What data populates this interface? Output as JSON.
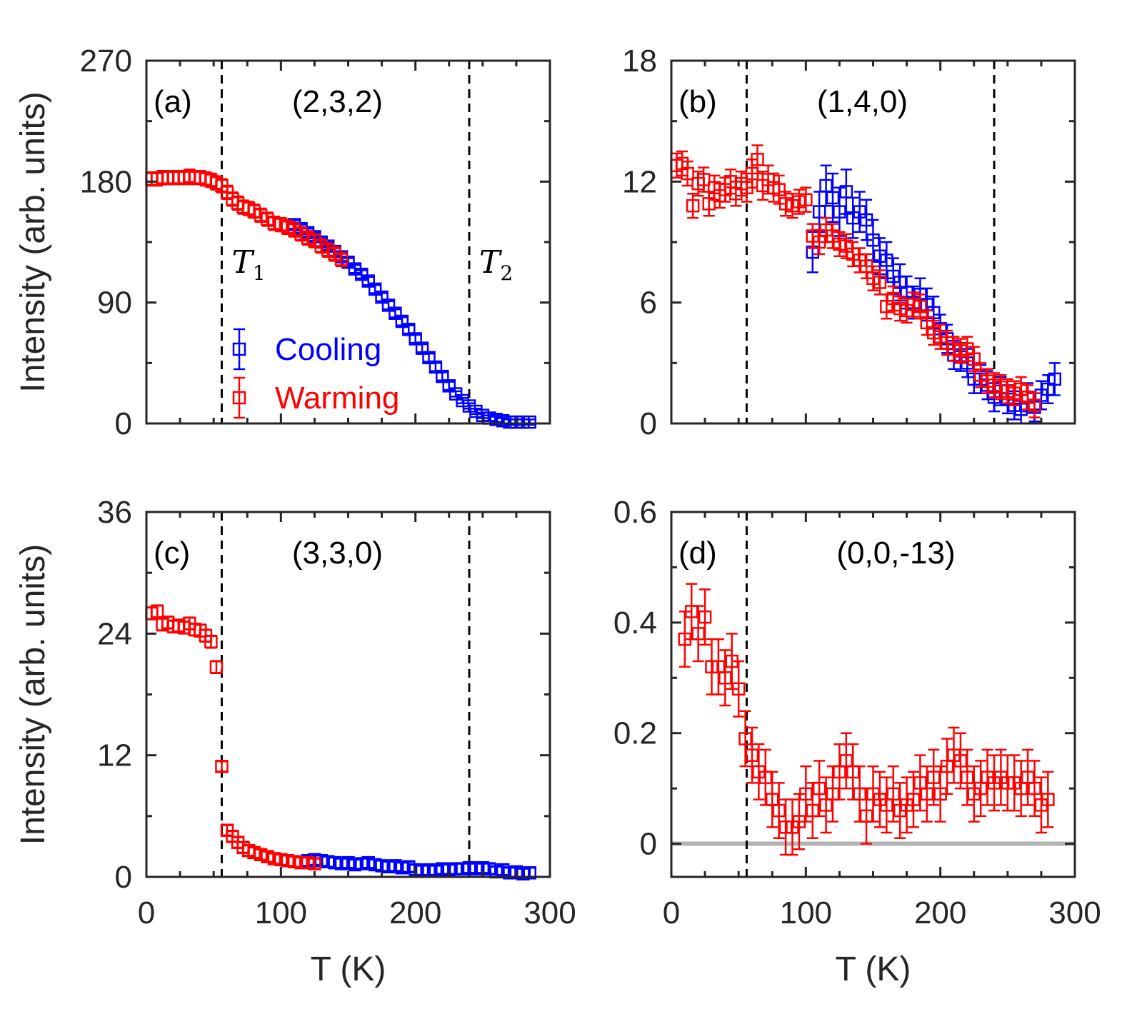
{
  "colors": {
    "cooling": "#0000ff",
    "warming": "#ff0000",
    "axis": "#262626",
    "baseline": "#b3b3b3"
  },
  "chart_data": [
    {
      "id": "a",
      "type": "scatter",
      "panel_label": "(a)",
      "title": "(2,3,2)",
      "xlabel": "",
      "ylabel": "Intensity (arb. units)",
      "xlim": [
        0,
        300
      ],
      "ylim": [
        0,
        270
      ],
      "xticks": [
        0,
        100,
        200,
        300
      ],
      "yticks": [
        0,
        90,
        180,
        270
      ],
      "ytick_labels": [
        "0",
        "90",
        "180",
        "270"
      ],
      "xticks_labeled": false,
      "vlines": [
        {
          "x": 56,
          "label": "T",
          "sub": "1"
        },
        {
          "x": 240,
          "label": "T",
          "sub": "2"
        }
      ],
      "legend": {
        "position": "bottom-center",
        "entries": [
          {
            "name": "Cooling",
            "color_key": "cooling"
          },
          {
            "name": "Warming",
            "color_key": "warming"
          }
        ]
      },
      "series": [
        {
          "name": "Cooling",
          "color_key": "cooling",
          "x": [
            110,
            115,
            120,
            125,
            130,
            135,
            140,
            145,
            150,
            155,
            160,
            165,
            170,
            175,
            180,
            185,
            190,
            195,
            200,
            205,
            210,
            215,
            220,
            225,
            230,
            235,
            240,
            245,
            250,
            255,
            260,
            265,
            270,
            275,
            280,
            285
          ],
          "y": [
            148,
            145,
            142,
            139,
            135,
            132,
            128,
            124,
            120,
            115,
            111,
            106,
            100,
            94,
            88,
            82,
            76,
            70,
            63,
            56,
            49,
            42,
            35,
            28,
            22,
            17,
            13,
            9,
            6,
            4,
            3,
            2,
            1,
            1,
            1,
            1
          ],
          "err": [
            3,
            3,
            3,
            3,
            3,
            3,
            3,
            3,
            3,
            3,
            3,
            3,
            3,
            3,
            3,
            3,
            3,
            3,
            3,
            3,
            3,
            3,
            3,
            3,
            2,
            2,
            2,
            2,
            2,
            2,
            2,
            2,
            2,
            2,
            2,
            2
          ]
        },
        {
          "name": "Warming",
          "color_key": "warming",
          "x": [
            4,
            8,
            12,
            16,
            20,
            24,
            28,
            32,
            36,
            40,
            44,
            48,
            52,
            56,
            60,
            64,
            68,
            72,
            76,
            80,
            85,
            90,
            95,
            100,
            105,
            110,
            115,
            120,
            125,
            130,
            135,
            140,
            145
          ],
          "y": [
            182,
            182,
            183,
            183,
            183,
            183,
            183,
            184,
            183,
            183,
            182,
            181,
            179,
            177,
            172,
            167,
            164,
            161,
            160,
            158,
            155,
            152,
            149,
            148,
            146,
            144,
            141,
            138,
            136,
            132,
            129,
            126,
            122
          ],
          "err": [
            5,
            5,
            5,
            5,
            5,
            5,
            5,
            5,
            5,
            5,
            5,
            5,
            5,
            5,
            5,
            5,
            5,
            5,
            5,
            5,
            5,
            5,
            5,
            5,
            5,
            5,
            5,
            5,
            5,
            5,
            5,
            5,
            5
          ]
        }
      ]
    },
    {
      "id": "b",
      "type": "scatter",
      "panel_label": "(b)",
      "title": "(1,4,0)",
      "xlabel": "",
      "ylabel": "",
      "xlim": [
        0,
        300
      ],
      "ylim": [
        0,
        18
      ],
      "xticks": [
        0,
        100,
        200,
        300
      ],
      "yticks": [
        0,
        6,
        12,
        18
      ],
      "ytick_labels": [
        "0",
        "6",
        "12",
        "18"
      ],
      "xticks_labeled": false,
      "vlines": [
        {
          "x": 56
        },
        {
          "x": 240
        }
      ],
      "series": [
        {
          "name": "Cooling",
          "color_key": "cooling",
          "x": [
            105,
            110,
            115,
            120,
            125,
            130,
            135,
            140,
            145,
            150,
            155,
            160,
            165,
            170,
            175,
            180,
            185,
            190,
            195,
            200,
            205,
            210,
            215,
            220,
            225,
            230,
            235,
            240,
            245,
            250,
            255,
            260,
            265,
            270,
            275,
            280,
            285
          ],
          "y": [
            8.5,
            10.5,
            11.8,
            11.2,
            10.5,
            11.5,
            10.2,
            10.5,
            10.1,
            9.1,
            8.3,
            8.1,
            7.3,
            7.0,
            6.5,
            6.0,
            6.4,
            5.9,
            5.5,
            4.7,
            4.2,
            3.4,
            3.3,
            3.0,
            2.2,
            2.2,
            1.9,
            1.3,
            1.6,
            1.2,
            0.9,
            0.7,
            1.3,
            0.8,
            1.4,
            1.7,
            2.2
          ],
          "err": [
            1.0,
            1.0,
            1.0,
            1.2,
            1.2,
            1.1,
            1.0,
            1.0,
            1.0,
            1.0,
            0.9,
            0.9,
            0.9,
            0.9,
            0.8,
            0.8,
            0.8,
            0.8,
            0.8,
            0.7,
            0.7,
            0.7,
            0.7,
            0.7,
            0.7,
            0.7,
            0.7,
            0.7,
            0.7,
            0.7,
            0.7,
            0.7,
            0.7,
            0.7,
            0.7,
            0.7,
            0.8
          ]
        },
        {
          "name": "Warming",
          "color_key": "warming",
          "x": [
            4,
            8,
            12,
            16,
            20,
            24,
            28,
            32,
            36,
            40,
            44,
            48,
            52,
            56,
            60,
            64,
            68,
            72,
            76,
            80,
            85,
            90,
            95,
            100,
            105,
            110,
            115,
            120,
            125,
            130,
            135,
            140,
            145,
            150,
            155,
            160,
            165,
            170,
            175,
            180,
            185,
            190,
            195,
            200,
            205,
            210,
            215,
            220,
            225,
            230,
            235,
            240,
            245,
            250,
            255,
            260,
            265,
            270
          ],
          "y": [
            12.8,
            12.9,
            12.4,
            10.8,
            11.9,
            12.1,
            10.9,
            11.7,
            11.3,
            11.6,
            12.0,
            11.4,
            11.9,
            11.7,
            12.4,
            13.1,
            11.8,
            12.1,
            11.7,
            11.6,
            10.9,
            10.8,
            11.0,
            11.1,
            9.3,
            9.0,
            9.6,
            9.3,
            8.9,
            8.8,
            8.4,
            8.1,
            7.8,
            7.2,
            7.0,
            5.8,
            6.2,
            5.7,
            5.6,
            5.9,
            5.8,
            5.0,
            4.5,
            4.3,
            4.0,
            3.7,
            3.6,
            3.7,
            3.2,
            2.4,
            2.1,
            1.9,
            1.8,
            1.6,
            1.5,
            1.7,
            1.3,
            0.9
          ],
          "err": [
            0.6,
            0.6,
            0.6,
            0.6,
            0.6,
            0.6,
            0.6,
            0.6,
            0.6,
            0.6,
            0.6,
            0.6,
            0.6,
            0.7,
            0.7,
            0.7,
            0.7,
            0.7,
            0.7,
            0.7,
            0.6,
            0.6,
            0.6,
            0.6,
            0.6,
            0.6,
            0.6,
            0.6,
            0.6,
            0.6,
            0.6,
            0.6,
            0.6,
            0.6,
            0.6,
            0.6,
            0.6,
            0.6,
            0.6,
            0.6,
            0.6,
            0.6,
            0.6,
            0.6,
            0.6,
            0.6,
            0.6,
            0.6,
            0.6,
            0.6,
            0.6,
            0.6,
            0.6,
            0.6,
            0.6,
            0.6,
            0.6,
            0.6
          ]
        }
      ]
    },
    {
      "id": "c",
      "type": "scatter",
      "panel_label": "(c)",
      "title": "(3,3,0)",
      "xlabel": "T (K)",
      "ylabel": "Intensity (arb. units)",
      "xlim": [
        0,
        300
      ],
      "ylim": [
        0,
        36
      ],
      "xticks": [
        0,
        100,
        200,
        300
      ],
      "xtick_labels": [
        "0",
        "100",
        "200",
        "300"
      ],
      "yticks": [
        0,
        12,
        24,
        36
      ],
      "ytick_labels": [
        "0",
        "12",
        "24",
        "36"
      ],
      "xticks_labeled": true,
      "vlines": [
        {
          "x": 56
        },
        {
          "x": 240
        }
      ],
      "series": [
        {
          "name": "Cooling",
          "color_key": "cooling",
          "x": [
            120,
            125,
            130,
            135,
            140,
            145,
            150,
            155,
            160,
            165,
            170,
            175,
            180,
            185,
            190,
            195,
            200,
            205,
            210,
            215,
            220,
            225,
            230,
            235,
            240,
            245,
            250,
            255,
            260,
            265,
            270,
            275,
            280,
            285
          ],
          "y": [
            1.6,
            1.7,
            1.6,
            1.5,
            1.4,
            1.3,
            1.4,
            1.2,
            1.3,
            1.4,
            1.2,
            1.1,
            1.0,
            1.1,
            0.9,
            1.0,
            0.7,
            0.6,
            0.7,
            0.6,
            0.8,
            0.7,
            0.8,
            0.8,
            0.9,
            0.8,
            0.9,
            0.8,
            0.5,
            0.7,
            0.4,
            0.5,
            0.3,
            0.4
          ],
          "err": [
            0.5,
            0.5,
            0.5,
            0.5,
            0.5,
            0.5,
            0.5,
            0.5,
            0.5,
            0.5,
            0.5,
            0.5,
            0.5,
            0.5,
            0.5,
            0.5,
            0.5,
            0.5,
            0.5,
            0.5,
            0.5,
            0.5,
            0.5,
            0.5,
            0.5,
            0.5,
            0.5,
            0.5,
            0.5,
            0.5,
            0.5,
            0.5,
            0.5,
            0.5
          ]
        },
        {
          "name": "Warming",
          "color_key": "warming",
          "x": [
            4,
            8,
            12,
            16,
            20,
            24,
            28,
            32,
            36,
            40,
            44,
            48,
            52,
            56,
            60,
            64,
            68,
            72,
            76,
            80,
            85,
            90,
            95,
            100,
            105,
            110,
            115,
            120,
            125
          ],
          "y": [
            26.0,
            26.2,
            24.9,
            25.1,
            24.7,
            24.8,
            24.6,
            25.0,
            24.4,
            24.3,
            23.8,
            23.2,
            20.7,
            10.9,
            4.6,
            4.0,
            3.4,
            2.9,
            2.6,
            2.4,
            2.2,
            2.0,
            1.8,
            1.7,
            1.6,
            1.5,
            1.4,
            1.4,
            1.3
          ],
          "err": [
            0.6,
            0.6,
            0.6,
            0.6,
            0.6,
            0.6,
            0.6,
            0.6,
            0.6,
            0.6,
            0.6,
            0.6,
            0.6,
            0.5,
            0.5,
            0.5,
            0.5,
            0.5,
            0.5,
            0.5,
            0.5,
            0.5,
            0.5,
            0.5,
            0.5,
            0.5,
            0.5,
            0.5,
            0.5
          ]
        }
      ]
    },
    {
      "id": "d",
      "type": "scatter",
      "panel_label": "(d)",
      "title": "(0,0,-13)",
      "xlabel": "T (K)",
      "ylabel": "",
      "xlim": [
        0,
        300
      ],
      "ylim": [
        -0.06,
        0.6
      ],
      "xticks": [
        0,
        100,
        200,
        300
      ],
      "xtick_labels": [
        "0",
        "100",
        "200",
        "300"
      ],
      "yticks": [
        0,
        0.2,
        0.4,
        0.6
      ],
      "ytick_labels": [
        "0",
        "0.2",
        "0.4",
        "0.6"
      ],
      "xticks_labeled": true,
      "baseline": 0,
      "vlines": [
        {
          "x": 56
        }
      ],
      "series": [
        {
          "name": "Warming",
          "color_key": "warming",
          "x": [
            10,
            15,
            20,
            25,
            30,
            35,
            40,
            45,
            50,
            55,
            60,
            65,
            70,
            75,
            80,
            85,
            90,
            95,
            100,
            105,
            110,
            115,
            120,
            125,
            130,
            135,
            140,
            145,
            150,
            155,
            160,
            165,
            170,
            175,
            180,
            185,
            190,
            195,
            200,
            205,
            210,
            215,
            220,
            225,
            230,
            235,
            240,
            245,
            250,
            255,
            260,
            265,
            270,
            275,
            280
          ],
          "y": [
            0.37,
            0.42,
            0.38,
            0.41,
            0.32,
            0.32,
            0.3,
            0.33,
            0.28,
            0.19,
            0.16,
            0.13,
            0.12,
            0.08,
            0.06,
            0.03,
            0.03,
            0.04,
            0.09,
            0.06,
            0.1,
            0.07,
            0.09,
            0.13,
            0.15,
            0.13,
            0.09,
            0.05,
            0.09,
            0.08,
            0.07,
            0.09,
            0.06,
            0.07,
            0.08,
            0.11,
            0.09,
            0.12,
            0.09,
            0.14,
            0.16,
            0.15,
            0.12,
            0.09,
            0.1,
            0.12,
            0.11,
            0.12,
            0.11,
            0.11,
            0.1,
            0.12,
            0.1,
            0.07,
            0.08
          ],
          "err": [
            0.05,
            0.05,
            0.05,
            0.05,
            0.05,
            0.05,
            0.05,
            0.05,
            0.05,
            0.05,
            0.05,
            0.05,
            0.05,
            0.05,
            0.05,
            0.05,
            0.05,
            0.05,
            0.05,
            0.05,
            0.05,
            0.05,
            0.05,
            0.05,
            0.05,
            0.05,
            0.05,
            0.05,
            0.05,
            0.05,
            0.05,
            0.05,
            0.05,
            0.05,
            0.05,
            0.05,
            0.05,
            0.05,
            0.05,
            0.05,
            0.05,
            0.05,
            0.05,
            0.05,
            0.05,
            0.05,
            0.05,
            0.05,
            0.05,
            0.05,
            0.05,
            0.05,
            0.05,
            0.05,
            0.05
          ]
        }
      ]
    }
  ]
}
